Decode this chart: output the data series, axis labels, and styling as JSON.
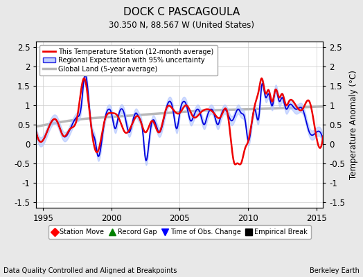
{
  "title": "DOCK C PASCAGOULA",
  "subtitle": "30.350 N, 88.567 W (United States)",
  "xlabel_bottom": "Data Quality Controlled and Aligned at Breakpoints",
  "xlabel_right": "Berkeley Earth",
  "ylabel": "Temperature Anomaly (°C)",
  "xlim": [
    1994.5,
    2015.5
  ],
  "ylim": [
    -1.65,
    2.65
  ],
  "yticks": [
    -1.5,
    -1.0,
    -0.5,
    0.0,
    0.5,
    1.0,
    1.5,
    2.0,
    2.5
  ],
  "xticks": [
    1995,
    2000,
    2005,
    2010,
    2015
  ],
  "background_color": "#e8e8e8",
  "plot_bg_color": "#ffffff",
  "global_land_color": "#b8b8b8",
  "regional_fill_color": "#b0c4ff",
  "regional_line_color": "#0000dd",
  "station_line_color": "#ee0000",
  "legend_items": [
    {
      "label": "This Temperature Station (12-month average)",
      "color": "#ee0000",
      "lw": 2
    },
    {
      "label": "Regional Expectation with 95% uncertainty",
      "color": "#0000dd",
      "lw": 1.5
    },
    {
      "label": "Global Land (5-year average)",
      "color": "#b8b8b8",
      "lw": 2.5
    }
  ],
  "marker_legend": [
    {
      "label": "Station Move",
      "color": "red",
      "marker": "D"
    },
    {
      "label": "Record Gap",
      "color": "green",
      "marker": "^"
    },
    {
      "label": "Time of Obs. Change",
      "color": "blue",
      "marker": "v"
    },
    {
      "label": "Empirical Break",
      "color": "black",
      "marker": "s"
    }
  ],
  "regional_t": [
    1994.5,
    1995.0,
    1995.5,
    1996.0,
    1996.5,
    1997.0,
    1997.5,
    1997.8,
    1998.0,
    1998.3,
    1998.5,
    1998.8,
    1999.0,
    1999.3,
    1999.5,
    1999.8,
    2000.0,
    2000.3,
    2000.5,
    2000.8,
    2001.0,
    2001.3,
    2001.5,
    2001.8,
    2002.0,
    2002.3,
    2002.5,
    2002.8,
    2003.0,
    2003.5,
    2004.0,
    2004.3,
    2004.5,
    2004.8,
    2005.0,
    2005.3,
    2005.5,
    2005.8,
    2006.0,
    2006.3,
    2006.5,
    2006.8,
    2007.0,
    2007.3,
    2007.5,
    2007.8,
    2008.0,
    2008.3,
    2008.5,
    2008.8,
    2009.0,
    2009.3,
    2009.5,
    2009.8,
    2010.0,
    2010.3,
    2010.5,
    2010.8,
    2011.0,
    2011.3,
    2011.5,
    2011.8,
    2012.0,
    2012.3,
    2012.5,
    2012.8,
    2013.0,
    2013.5,
    2014.0,
    2014.5,
    2015.0,
    2015.5
  ],
  "regional_v": [
    0.3,
    0.1,
    0.5,
    0.6,
    0.2,
    0.4,
    0.7,
    1.0,
    1.7,
    1.3,
    0.5,
    0.1,
    -0.3,
    0.1,
    0.6,
    0.9,
    0.8,
    0.4,
    0.7,
    0.9,
    0.7,
    0.3,
    0.5,
    0.8,
    0.7,
    0.3,
    -0.4,
    0.2,
    0.6,
    0.3,
    0.9,
    1.1,
    0.9,
    0.4,
    0.8,
    1.1,
    1.0,
    0.6,
    0.7,
    0.9,
    0.8,
    0.5,
    0.7,
    0.9,
    0.8,
    0.5,
    0.7,
    0.9,
    0.8,
    0.6,
    0.7,
    0.9,
    0.8,
    0.6,
    0.1,
    0.6,
    0.9,
    0.7,
    1.5,
    1.2,
    1.3,
    1.0,
    1.4,
    1.1,
    1.2,
    0.9,
    1.0,
    0.9,
    0.9,
    0.3,
    0.3,
    0.1
  ],
  "regional_band": 0.12,
  "station_t": [
    1994.5,
    1995.0,
    1995.5,
    1996.0,
    1996.5,
    1997.0,
    1997.5,
    1998.0,
    1998.5,
    1999.0,
    1999.5,
    2000.0,
    2000.5,
    2001.0,
    2001.5,
    2002.0,
    2002.5,
    2003.0,
    2003.5,
    2004.0,
    2004.5,
    2005.0,
    2005.5,
    2006.0,
    2006.5,
    2007.0,
    2007.5,
    2008.0,
    2008.5,
    2009.0,
    2009.2,
    2009.5,
    2009.8,
    2010.0,
    2010.2,
    2010.5,
    2010.8,
    2011.0,
    2011.3,
    2011.5,
    2011.8,
    2012.0,
    2012.3,
    2012.5,
    2012.8,
    2013.0,
    2013.5,
    2014.0,
    2014.5,
    2015.0,
    2015.5
  ],
  "station_v": [
    0.3,
    0.1,
    0.5,
    0.6,
    0.2,
    0.4,
    0.7,
    1.7,
    0.5,
    -0.2,
    0.6,
    0.8,
    0.7,
    0.3,
    0.5,
    0.7,
    0.3,
    0.6,
    0.3,
    0.9,
    0.9,
    0.8,
    1.0,
    0.7,
    0.8,
    0.9,
    0.8,
    0.7,
    0.8,
    -0.5,
    -0.5,
    -0.5,
    -0.1,
    0.05,
    0.4,
    1.0,
    1.4,
    1.7,
    1.3,
    1.4,
    1.1,
    1.4,
    1.2,
    1.3,
    1.0,
    1.1,
    1.0,
    0.9,
    1.1,
    0.2,
    0.2
  ],
  "global_t": [
    1994.5,
    1996.0,
    1998.0,
    2000.0,
    2002.0,
    2004.0,
    2006.0,
    2008.0,
    2010.0,
    2012.0,
    2014.0,
    2015.5
  ],
  "global_v": [
    0.45,
    0.55,
    0.65,
    0.7,
    0.75,
    0.8,
    0.85,
    0.88,
    0.9,
    0.92,
    0.95,
    0.97
  ]
}
